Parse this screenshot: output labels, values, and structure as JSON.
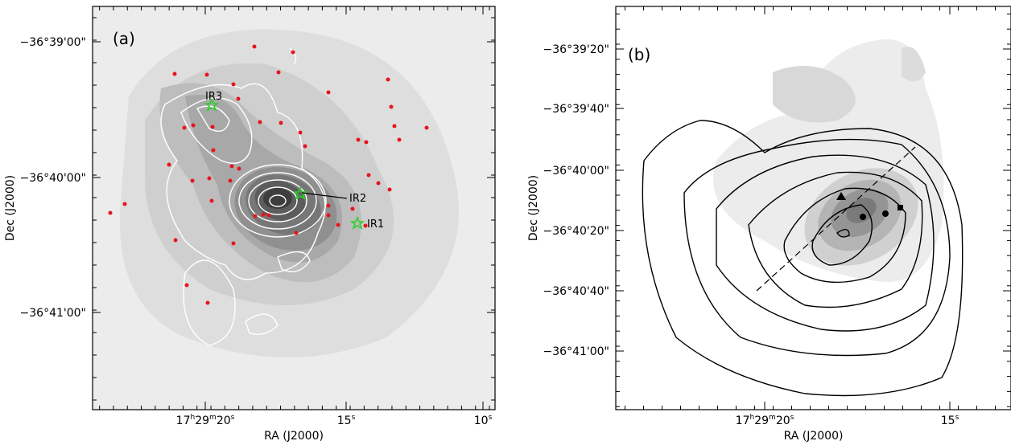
{
  "panels": [
    {
      "label": "(a)",
      "y_title": "Dec (J2000)",
      "x_title": "RA (J2000)",
      "y_tick_labels": [
        "−36°39'00\"",
        "−36°40'00\"",
        "−36°41'00\""
      ],
      "x_tick_labels": [
        [
          "17",
          "h",
          "29",
          "m",
          "20",
          "s"
        ],
        [
          "15",
          "s"
        ],
        [
          "10",
          "s"
        ]
      ],
      "sources": [
        "IR3",
        "IR2",
        "IR1"
      ]
    },
    {
      "label": "(b)",
      "y_title": "Dec (J2000)",
      "x_title": "RA (J2000)",
      "y_tick_labels": [
        "−36°39'20\"",
        "−36°39'40\"",
        "−36°40'00\"",
        "−36°40'20\"",
        "−36°40'40\"",
        "−36°41'00\""
      ],
      "x_tick_labels": [
        [
          "17",
          "h",
          "29",
          "m",
          "20",
          "s"
        ],
        [
          "15",
          "s"
        ]
      ]
    }
  ]
}
